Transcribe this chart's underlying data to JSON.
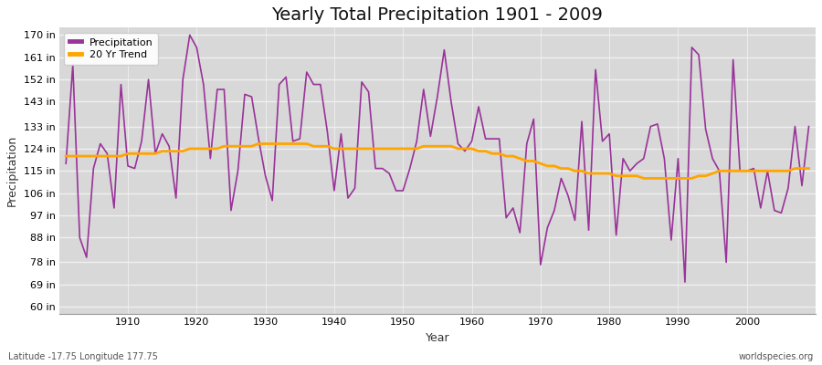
{
  "title": "Yearly Total Precipitation 1901 - 2009",
  "xlabel": "Year",
  "ylabel": "Precipitation",
  "lat_lon_label": "Latitude -17.75 Longitude 177.75",
  "watermark": "worldspecies.org",
  "years": [
    1901,
    1902,
    1903,
    1904,
    1905,
    1906,
    1907,
    1908,
    1909,
    1910,
    1911,
    1912,
    1913,
    1914,
    1915,
    1916,
    1917,
    1918,
    1919,
    1920,
    1921,
    1922,
    1923,
    1924,
    1925,
    1926,
    1927,
    1928,
    1929,
    1930,
    1931,
    1932,
    1933,
    1934,
    1935,
    1936,
    1937,
    1938,
    1939,
    1940,
    1941,
    1942,
    1943,
    1944,
    1945,
    1946,
    1947,
    1948,
    1949,
    1950,
    1951,
    1952,
    1953,
    1954,
    1955,
    1956,
    1957,
    1958,
    1959,
    1960,
    1961,
    1962,
    1963,
    1964,
    1965,
    1966,
    1967,
    1968,
    1969,
    1970,
    1971,
    1972,
    1973,
    1974,
    1975,
    1976,
    1977,
    1978,
    1979,
    1980,
    1981,
    1982,
    1983,
    1984,
    1985,
    1986,
    1987,
    1988,
    1989,
    1990,
    1991,
    1992,
    1993,
    1994,
    1995,
    1996,
    1997,
    1998,
    1999,
    2000,
    2001,
    2002,
    2003,
    2004,
    2005,
    2006,
    2007,
    2008,
    2009
  ],
  "precipitation": [
    118,
    158,
    88,
    80,
    116,
    126,
    122,
    100,
    150,
    117,
    116,
    127,
    152,
    122,
    130,
    125,
    104,
    152,
    170,
    165,
    150,
    120,
    148,
    148,
    99,
    115,
    146,
    145,
    128,
    113,
    103,
    150,
    153,
    127,
    128,
    155,
    150,
    150,
    131,
    107,
    130,
    104,
    108,
    151,
    147,
    116,
    116,
    114,
    107,
    107,
    116,
    127,
    148,
    129,
    145,
    164,
    143,
    126,
    123,
    127,
    141,
    128,
    128,
    128,
    96,
    100,
    90,
    126,
    136,
    77,
    92,
    99,
    112,
    105,
    95,
    135,
    91,
    156,
    127,
    130,
    89,
    120,
    115,
    118,
    120,
    133,
    134,
    120,
    87,
    120,
    70,
    165,
    162,
    132,
    120,
    115,
    78,
    160,
    115,
    115,
    116,
    100,
    115,
    99,
    98,
    108,
    133,
    109,
    133
  ],
  "trend": [
    121,
    121,
    121,
    121,
    121,
    121,
    121,
    121,
    121,
    122,
    122,
    122,
    122,
    122,
    123,
    123,
    123,
    123,
    124,
    124,
    124,
    124,
    124,
    125,
    125,
    125,
    125,
    125,
    126,
    126,
    126,
    126,
    126,
    126,
    126,
    126,
    125,
    125,
    125,
    124,
    124,
    124,
    124,
    124,
    124,
    124,
    124,
    124,
    124,
    124,
    124,
    124,
    125,
    125,
    125,
    125,
    125,
    124,
    124,
    124,
    123,
    123,
    122,
    122,
    121,
    121,
    120,
    119,
    119,
    118,
    117,
    117,
    116,
    116,
    115,
    115,
    114,
    114,
    114,
    114,
    113,
    113,
    113,
    113,
    112,
    112,
    112,
    112,
    112,
    112,
    112,
    112,
    113,
    113,
    114,
    115,
    115,
    115,
    115,
    115,
    115,
    115,
    115,
    115,
    115,
    115,
    116,
    116,
    116
  ],
  "precip_color": "#993399",
  "trend_color": "#FFA500",
  "fig_bg_color": "#ffffff",
  "plot_bg_color": "#d8d8d8",
  "grid_color": "#f0f0f0",
  "yticks": [
    60,
    69,
    78,
    88,
    97,
    106,
    115,
    124,
    133,
    143,
    152,
    161,
    170
  ],
  "ytick_labels": [
    "60 in",
    "69 in",
    "78 in",
    "88 in",
    "97 in",
    "106 in",
    "115 in",
    "124 in",
    "133 in",
    "143 in",
    "152 in",
    "161 in",
    "170 in"
  ],
  "xticks": [
    1910,
    1920,
    1930,
    1940,
    1950,
    1960,
    1970,
    1980,
    1990,
    2000
  ],
  "ylim": [
    57,
    173
  ],
  "xlim": [
    1900,
    2010
  ],
  "title_fontsize": 14,
  "axis_label_fontsize": 9,
  "tick_fontsize": 8,
  "legend_fontsize": 8,
  "annot_fontsize": 7
}
